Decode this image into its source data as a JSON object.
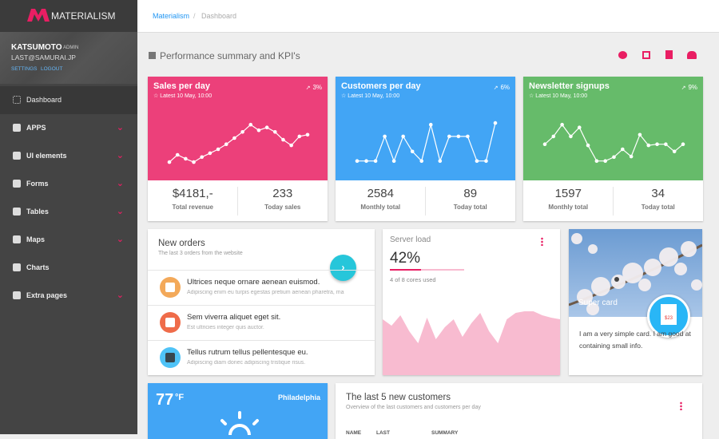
{
  "sidebar": {
    "brand": "MATERIALISM",
    "user": {
      "name": "KATSUMOTO",
      "role": "ADMIN",
      "email": "LAST@SAMURAI.JP",
      "links": [
        "SETTINGS",
        "LOGOUT"
      ]
    },
    "menu": [
      {
        "label": "Dashboard",
        "active": true,
        "submenu": false
      },
      {
        "label": "APPS",
        "active": false,
        "submenu": true
      },
      {
        "label": "UI elements",
        "active": false,
        "submenu": true
      },
      {
        "label": "Forms",
        "active": false,
        "submenu": true
      },
      {
        "label": "Tables",
        "active": false,
        "submenu": true
      },
      {
        "label": "Maps",
        "active": false,
        "submenu": true
      },
      {
        "label": "Charts",
        "active": false,
        "submenu": false
      },
      {
        "label": "Extra pages",
        "active": false,
        "submenu": true
      }
    ]
  },
  "breadcrumb": [
    "Materialism",
    "Dashboard"
  ],
  "heading": "Performance summary and KPI's",
  "kpis": [
    {
      "title": "Sales per day",
      "subtitle": "Latest 10 May, 10:00",
      "change": "3%",
      "color": "#ec407a",
      "sparkline": [
        17,
        30,
        23,
        17,
        26,
        33,
        40,
        49,
        60,
        71,
        84,
        74,
        79,
        71,
        57,
        47,
        63,
        66
      ],
      "stats": [
        {
          "value": "$4181,-",
          "label": "Total revenue"
        },
        {
          "value": "233",
          "label": "Today sales"
        }
      ]
    },
    {
      "title": "Customers per day",
      "subtitle": "Latest 10 May, 10:00",
      "change": "6%",
      "color": "#42a5f5",
      "sparkline": [
        19,
        19,
        19,
        63,
        19,
        63,
        36,
        19,
        84,
        19,
        63,
        63,
        63,
        19,
        19,
        87
      ],
      "stats": [
        {
          "value": "2584",
          "label": "Monthly total"
        },
        {
          "value": "89",
          "label": "Today total"
        }
      ]
    },
    {
      "title": "Newsletter signups",
      "subtitle": "Latest 10 May, 10:00",
      "change": "9%",
      "color": "#66bb6a",
      "sparkline": [
        49,
        63,
        84,
        63,
        79,
        47,
        19,
        19,
        26,
        40,
        27,
        66,
        47,
        49,
        49,
        36,
        49
      ],
      "stats": [
        {
          "value": "1597",
          "label": "Monthly total"
        },
        {
          "value": "34",
          "label": "Today total"
        }
      ]
    }
  ],
  "orders": {
    "title": "New orders",
    "subtitle": "The last 3 orders from the website",
    "items": [
      {
        "title": "Ultrices neque ornare aenean euismod.",
        "subtitle": "Adipiscing enim eu turpis egestas pretium aenean pharetra, ma"
      },
      {
        "title": "Sem viverra aliquet eget sit.",
        "subtitle": "Est ultricies integer quis auctor."
      },
      {
        "title": "Tellus rutrum tellus pellentesque eu.",
        "subtitle": "Adipiscing diam donec adipiscing tristique risus."
      }
    ]
  },
  "server_load": {
    "title": "Server load",
    "value": "42%",
    "note": "4 of 8 cores used",
    "history": [
      70,
      62,
      75,
      55,
      40,
      72,
      45,
      60,
      70,
      48,
      65,
      78,
      55,
      40,
      70,
      78,
      80,
      80,
      75,
      72,
      70
    ]
  },
  "super_card": {
    "title": "Super card",
    "price": "$23",
    "text": "I am a very simple card. I am good at containing small info."
  },
  "weather": {
    "temp": "77",
    "unit": "°F",
    "city": "Philadelphia"
  },
  "customers": {
    "title": "The last 5 new customers",
    "subtitle": "Overview of the last customers and customers per day",
    "columns": [
      "NAME",
      "LAST",
      "SUMMARY"
    ]
  }
}
